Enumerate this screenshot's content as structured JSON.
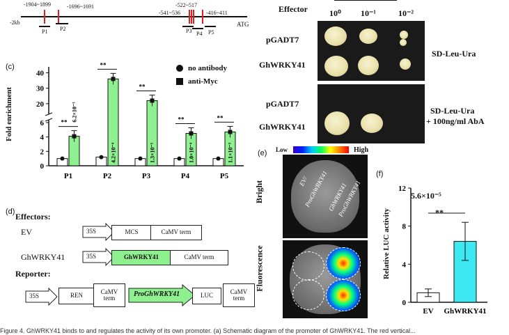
{
  "panel_a": {
    "positions": [
      "-1904~1899",
      "-1696~1691",
      "-541~536",
      "-522~517",
      "-416~411"
    ],
    "start_label": "-2kb",
    "atg_label": "ATG",
    "probes": [
      "P1",
      "P2",
      "P3",
      "P4",
      "P5"
    ]
  },
  "panel_b": {
    "effector_header": "Effector",
    "dilutions": [
      "10⁰",
      "10⁻¹",
      "10⁻²"
    ],
    "rows": [
      "pGADT7",
      "GhWRKY41",
      "pGADT7",
      "GhWRKY41"
    ],
    "media": [
      "SD-Leu-Ura",
      "SD-Leu-Ura",
      "+ 100ng/ml AbA"
    ]
  },
  "panel_c": {
    "letter": "(c)",
    "ylabel": "Fold enrichment",
    "legend": [
      "no antibody",
      "anti-Myc"
    ],
    "sig": "**",
    "pvalues": [
      "6.2×10⁻³",
      "4.2×10⁻⁴",
      "1.3×10⁻⁵",
      "1.0×10⁻⁴",
      "1.1×10⁻³"
    ],
    "yticks_low": [
      "0",
      "2",
      "4",
      "6"
    ],
    "yticks_high": [
      "20",
      "30",
      "40"
    ]
  },
  "chart_data": {
    "type": "bar",
    "categories": [
      "P1",
      "P2",
      "P3",
      "P4",
      "P5"
    ],
    "series": [
      {
        "name": "no antibody",
        "values": [
          1.0,
          1.2,
          1.0,
          1.0,
          1.0
        ]
      },
      {
        "name": "anti-Myc",
        "values": [
          4.1,
          36.0,
          22.0,
          4.5,
          4.7
        ]
      }
    ],
    "ylabel": "Fold enrichment",
    "axis_break": [
      6,
      15
    ],
    "ylim": [
      0,
      42
    ]
  },
  "panel_d": {
    "letter": "(d)",
    "effectors_label": "Effectors:",
    "reporter_label": "Reporter:",
    "ev_label": "EV",
    "gh_label": "GhWRKY41",
    "p35s": "35S",
    "mcs": "MCS",
    "camv": "CaMV term",
    "ghwrky41": "GhWRKY41",
    "ren": "REN",
    "camv_two_a": "CaMV",
    "camv_two_b": "term",
    "promoter": "ProGhWRKY41",
    "luc": "LUC"
  },
  "panel_e": {
    "letter": "(e)",
    "low": "Low",
    "high": "High",
    "bright": "Bright",
    "fluorescence": "Fluorescence",
    "ev_text_a": "EV",
    "ev_text_b": "ProGhWRKY41",
    "gh_text_a": "GhWRKY41",
    "gh_text_b": "ProGhWRKY41"
  },
  "panel_f": {
    "letter": "(f)",
    "pvalue": "5.6×10⁻⁵",
    "sig": "**",
    "ylabel": "Relative LUC activity",
    "yticks": [
      "0",
      "4",
      "8",
      "12"
    ],
    "categories": [
      "EV",
      "GhWRKY41"
    ],
    "values": [
      1.0,
      6.4
    ],
    "ylim": [
      0,
      12
    ]
  },
  "caption": "Figure 4. GhWRKY41 binds to and regulates the activity of its own promoter. (a) Schematic diagram of the promoter of GhWRKY41. The red vertical..."
}
